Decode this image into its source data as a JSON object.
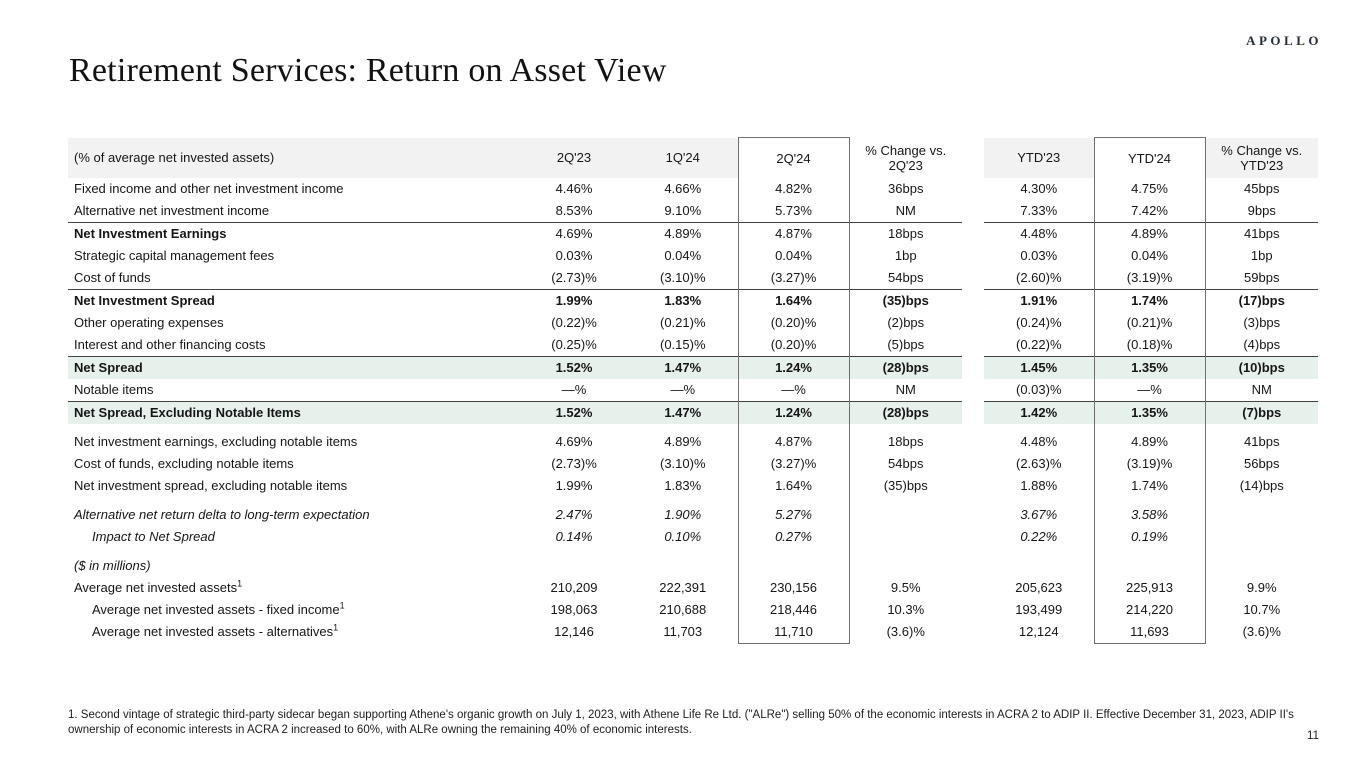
{
  "brand": {
    "logo_text": "APOLLO"
  },
  "title": "Retirement Services: Return on Asset View",
  "table": {
    "columns": [
      "(% of average net invested assets)",
      "2Q'23",
      "1Q'24",
      "2Q'24",
      "% Change vs. 2Q'23",
      "YTD'23",
      "YTD'24",
      "% Change vs. YTD'23"
    ],
    "boxed_columns": [
      "2Q'24",
      "YTD'24"
    ],
    "footnote_marker": "1",
    "rows": [
      {
        "label": "Fixed income and other net investment income",
        "values": [
          "4.46%",
          "4.66%",
          "4.82%",
          "36bps",
          "4.30%",
          "4.75%",
          "45bps"
        ]
      },
      {
        "label": "Alternative net investment income",
        "values": [
          "8.53%",
          "9.10%",
          "5.73%",
          "NM",
          "7.33%",
          "7.42%",
          "9bps"
        ]
      },
      {
        "label": "Net Investment Earnings",
        "values": [
          "4.69%",
          "4.89%",
          "4.87%",
          "18bps",
          "4.48%",
          "4.89%",
          "41bps"
        ],
        "bold": true,
        "topline": true
      },
      {
        "label": "Strategic capital management fees",
        "values": [
          "0.03%",
          "0.04%",
          "0.04%",
          "1bp",
          "0.03%",
          "0.04%",
          "1bp"
        ]
      },
      {
        "label": "Cost of funds",
        "values": [
          "(2.73)%",
          "(3.10)%",
          "(3.27)%",
          "54bps",
          "(2.60)%",
          "(3.19)%",
          "59bps"
        ]
      },
      {
        "label": "Net Investment Spread",
        "values": [
          "1.99%",
          "1.83%",
          "1.64%",
          "(35)bps",
          "1.91%",
          "1.74%",
          "(17)bps"
        ],
        "bold": true,
        "bold_values": true,
        "topline": true
      },
      {
        "label": "Other operating expenses",
        "values": [
          "(0.22)%",
          "(0.21)%",
          "(0.20)%",
          "(2)bps",
          "(0.24)%",
          "(0.21)%",
          "(3)bps"
        ]
      },
      {
        "label": "Interest and other financing costs",
        "values": [
          "(0.25)%",
          "(0.15)%",
          "(0.20)%",
          "(5)bps",
          "(0.22)%",
          "(0.18)%",
          "(4)bps"
        ]
      },
      {
        "label": "Net Spread",
        "values": [
          "1.52%",
          "1.47%",
          "1.24%",
          "(28)bps",
          "1.45%",
          "1.35%",
          "(10)bps"
        ],
        "bold": true,
        "bold_values": true,
        "topline": true,
        "highlight": true
      },
      {
        "label": "Notable items",
        "values": [
          "—%",
          "—%",
          "—%",
          "NM",
          "(0.03)%",
          "—%",
          "NM"
        ]
      },
      {
        "label": "Net Spread, Excluding Notable Items",
        "values": [
          "1.52%",
          "1.47%",
          "1.24%",
          "(28)bps",
          "1.42%",
          "1.35%",
          "(7)bps"
        ],
        "bold": true,
        "bold_values": true,
        "topline": true,
        "highlight": true
      },
      {
        "label": "Net investment earnings, excluding notable items",
        "values": [
          "4.69%",
          "4.89%",
          "4.87%",
          "18bps",
          "4.48%",
          "4.89%",
          "41bps"
        ],
        "spacer_before": true
      },
      {
        "label": "Cost of funds, excluding notable items",
        "values": [
          "(2.73)%",
          "(3.10)%",
          "(3.27)%",
          "54bps",
          "(2.63)%",
          "(3.19)%",
          "56bps"
        ]
      },
      {
        "label": "Net investment spread, excluding notable items",
        "values": [
          "1.99%",
          "1.83%",
          "1.64%",
          "(35)bps",
          "1.88%",
          "1.74%",
          "(14)bps"
        ]
      },
      {
        "label": "Alternative net return delta to long-term expectation",
        "values": [
          "2.47%",
          "1.90%",
          "5.27%",
          "",
          "3.67%",
          "3.58%",
          ""
        ],
        "italic": true,
        "spacer_before": true
      },
      {
        "label": "Impact to Net Spread",
        "values": [
          "0.14%",
          "0.10%",
          "0.27%",
          "",
          "0.22%",
          "0.19%",
          ""
        ],
        "italic": true,
        "indent": true
      },
      {
        "label": "($ in millions)",
        "values": [
          "",
          "",
          "",
          "",
          "",
          "",
          ""
        ],
        "italic": true,
        "spacer_before": true
      },
      {
        "label": "Average net invested assets",
        "values": [
          "210,209",
          "222,391",
          "230,156",
          "9.5%",
          "205,623",
          "225,913",
          "9.9%"
        ],
        "sup": true
      },
      {
        "label": "Average net invested assets - fixed income",
        "values": [
          "198,063",
          "210,688",
          "218,446",
          "10.3%",
          "193,499",
          "214,220",
          "10.7%"
        ],
        "sup": true,
        "indent": true
      },
      {
        "label": "Average net invested assets - alternatives",
        "values": [
          "12,146",
          "11,703",
          "11,710",
          "(3.6)%",
          "12,124",
          "11,693",
          "(3.6)%"
        ],
        "sup": true,
        "indent": true
      }
    ]
  },
  "footnote": "1. Second vintage of strategic third-party sidecar began supporting Athene's organic growth on July 1, 2023, with Athene Life Re Ltd. (\"ALRe\") selling 50% of the economic interests in ACRA 2 to ADIP II. Effective December 31, 2023, ADIP II's ownership of economic interests in ACRA 2 increased to 60%, with ALRe owning the remaining 40% of economic interests.",
  "page_number": "11",
  "colors": {
    "highlight_row": "#e6f1ec",
    "header_bg": "#f2f2f2",
    "box_border": "#707070",
    "rule": "#424242"
  }
}
